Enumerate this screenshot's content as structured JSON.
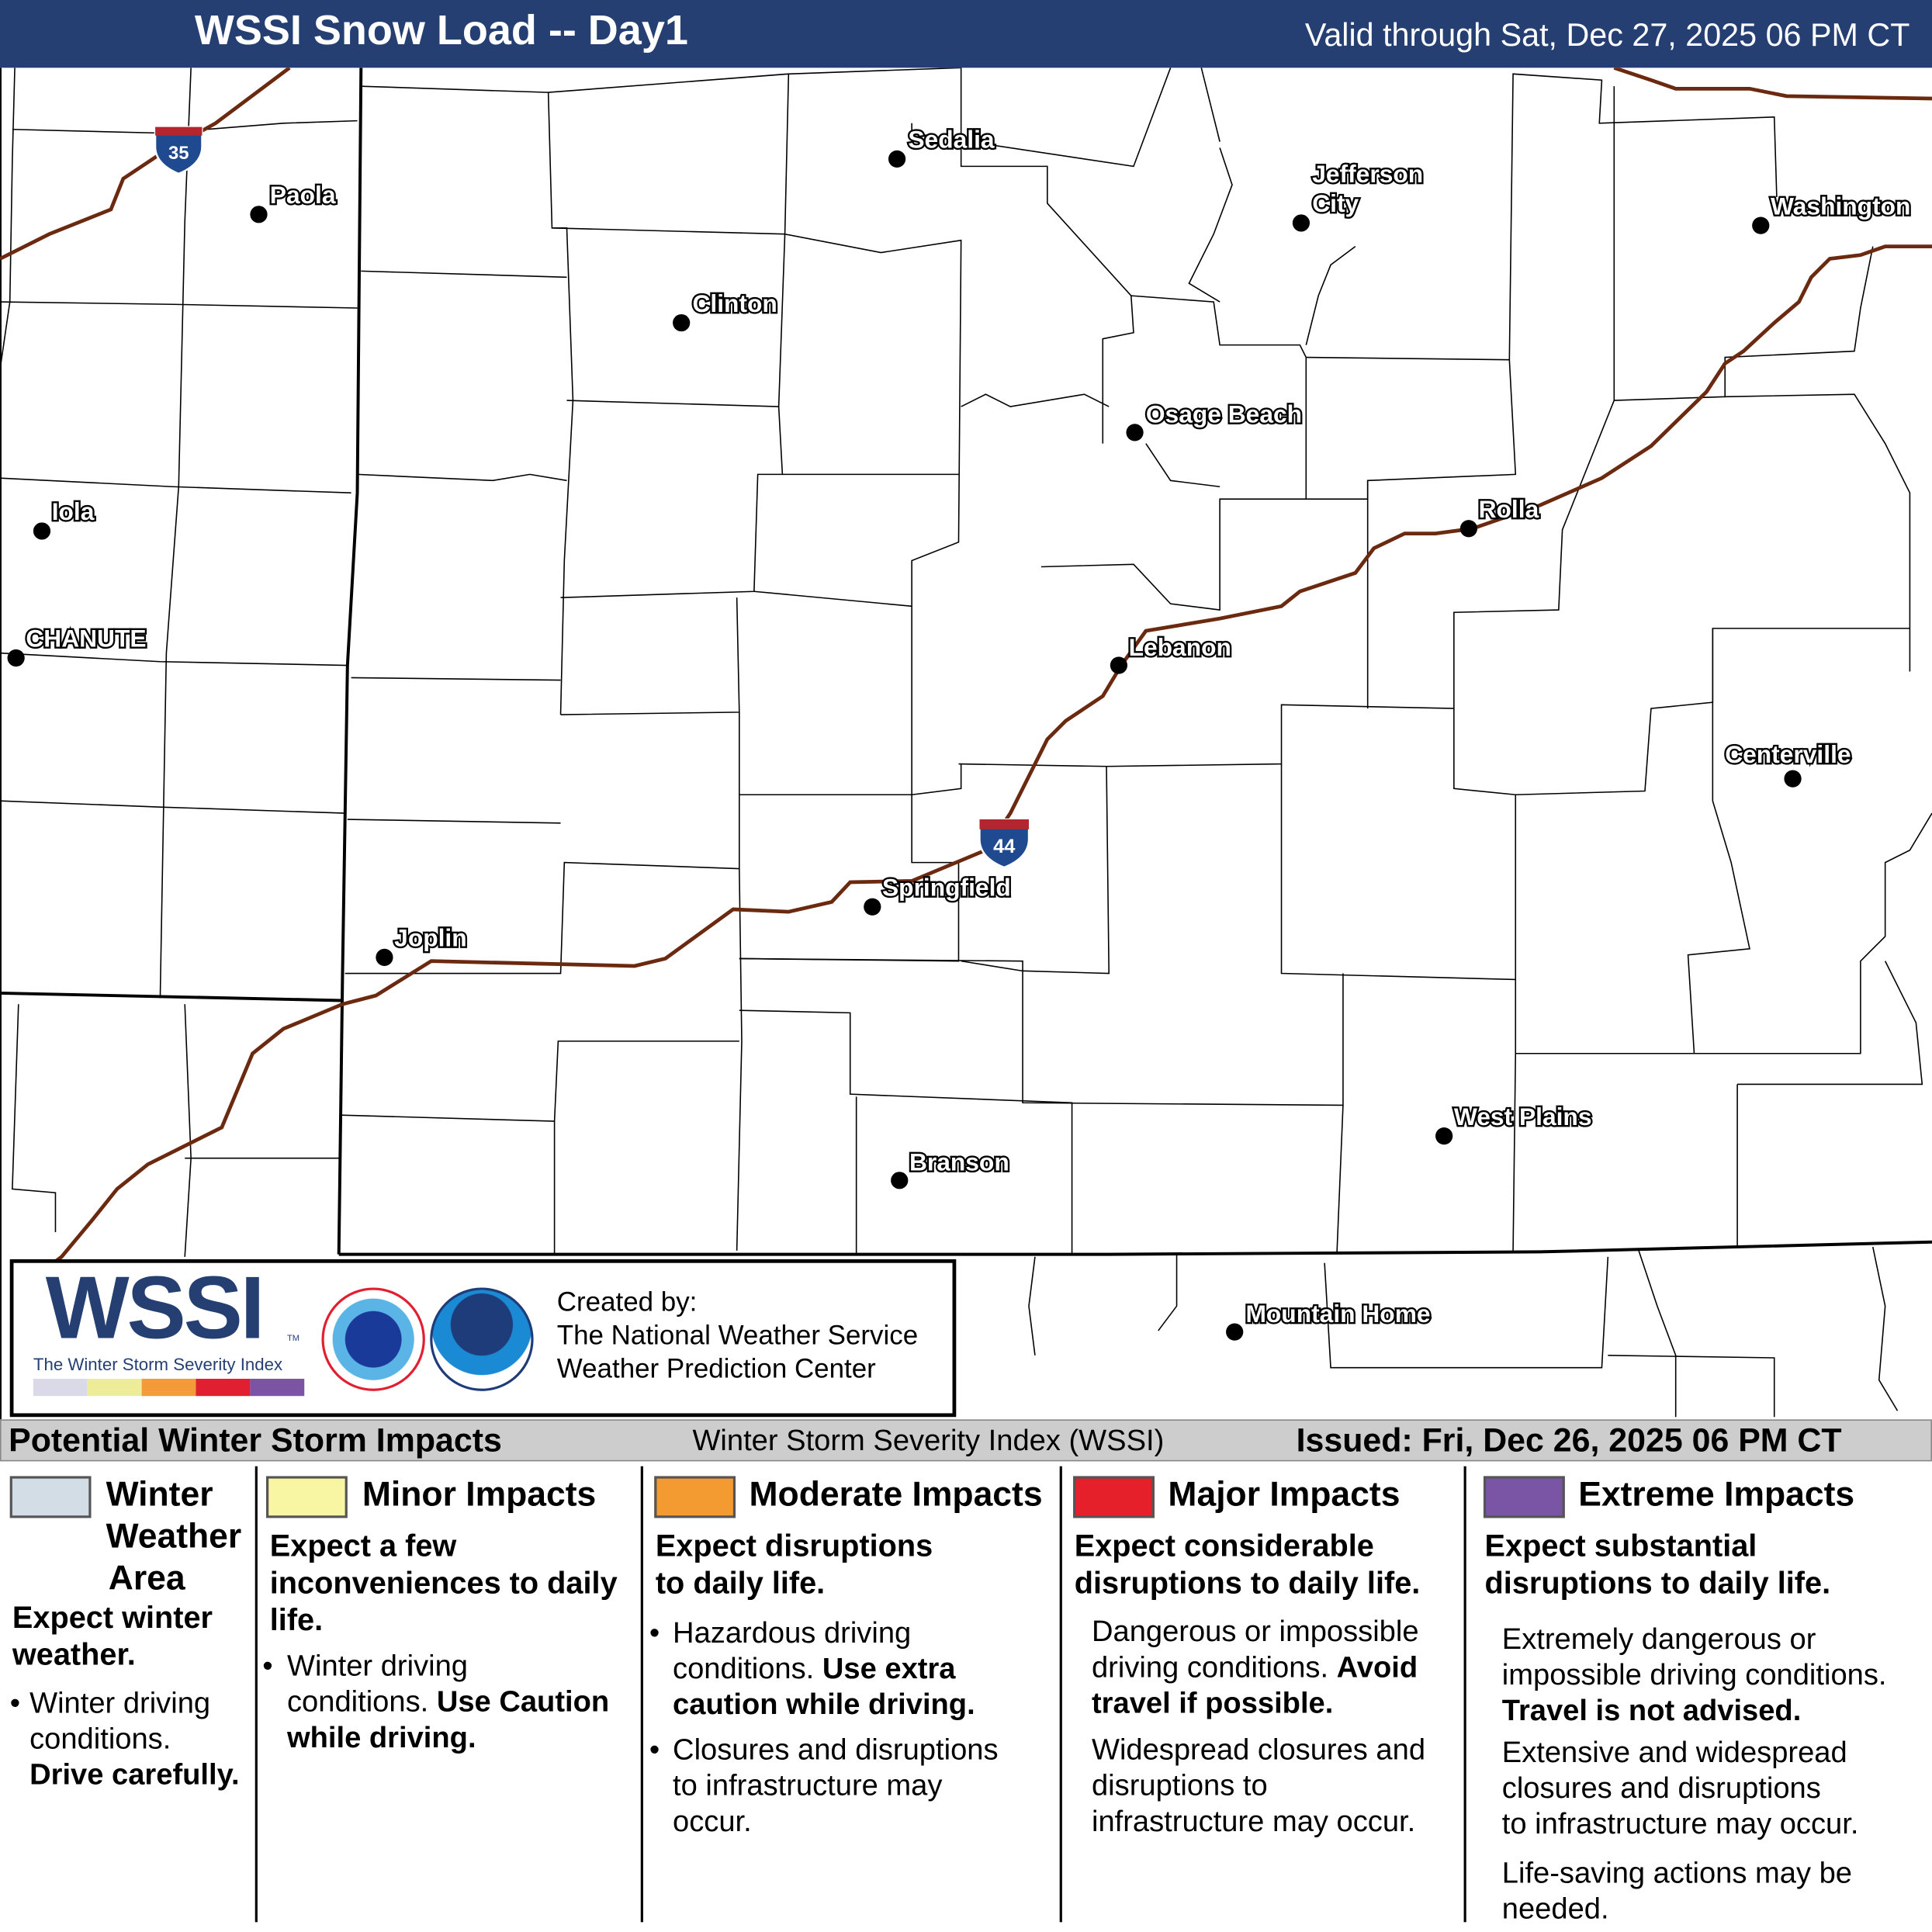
{
  "header": {
    "title": "WSSI Snow Load -- Day1",
    "valid": "Valid through Sat, Dec 27, 2025 06 PM CT"
  },
  "map": {
    "interstates": [
      {
        "number": "35"
      },
      {
        "number": "44"
      }
    ],
    "cities": [
      {
        "name": "Sedalia"
      },
      {
        "name": "Paola"
      },
      {
        "name": "Jefferson"
      },
      {
        "name": "City"
      },
      {
        "name": "Washington"
      },
      {
        "name": "Clinton"
      },
      {
        "name": "Osage Beach"
      },
      {
        "name": "Iola"
      },
      {
        "name": "Rolla"
      },
      {
        "name": "CHANUTE"
      },
      {
        "name": "Lebanon"
      },
      {
        "name": "Centerville"
      },
      {
        "name": "Springfield"
      },
      {
        "name": "Joplin"
      },
      {
        "name": "West Plains"
      },
      {
        "name": "Branson"
      },
      {
        "name": "Mountain Home"
      }
    ],
    "colors": {
      "interstate_route": "#6b2a10",
      "state_border": "#000000",
      "county_border": "#000000"
    }
  },
  "credit": {
    "logo_text": "WSSI",
    "logo_tagline": "The Winter Storm Severity Index",
    "tm": "TM",
    "created_by": "Created by:",
    "org1": "The National Weather Service",
    "org2": "Weather Prediction Center",
    "scale_colors": [
      "#d9d9e8",
      "#eded99",
      "#f59a38",
      "#e02030",
      "#7b54a3"
    ]
  },
  "legend": {
    "left": "Potential Winter Storm Impacts",
    "middle": "Winter Storm Severity Index (WSSI)",
    "right": "Issued: Fri, Dec 26, 2025 06 PM CT",
    "categories": [
      {
        "color": "#d3dde6",
        "title1": "Winter",
        "title2": "Weather",
        "title3": "Area",
        "summary1": "Expect winter",
        "summary2": "weather.",
        "b1": "Winter driving",
        "b2": "conditions.",
        "b3": "Drive carefully."
      },
      {
        "color": "#f8f5a3",
        "title": "Minor Impacts",
        "summary1": "Expect a few",
        "summary2": "inconveniences to daily",
        "summary3": "life.",
        "b1": "Winter driving",
        "b2": "conditions.",
        "b2b": "Use Caution",
        "b3": "while driving."
      },
      {
        "color": "#f39a31",
        "title": "Moderate Impacts",
        "summary1": "Expect disruptions",
        "summary2": "to daily life.",
        "b1": "Hazardous driving",
        "b2": "conditions.",
        "b2b": "Use extra",
        "b3": "caution while driving.",
        "c1": "Closures and disruptions",
        "c2": "to infrastructure may",
        "c3": "occur."
      },
      {
        "color": "#e5202a",
        "title": "Major Impacts",
        "summary1": "Expect considerable",
        "summary2": "disruptions to daily life.",
        "b1": "Dangerous or impossible",
        "b2": "driving conditions.",
        "b2b": "Avoid",
        "b3": "travel if possible.",
        "c1": "Widespread closures and",
        "c2": "disruptions to",
        "c3": "infrastructure may occur."
      },
      {
        "color": "#7a55a5",
        "title": "Extreme Impacts",
        "summary1": "Expect substantial",
        "summary2": "disruptions to daily life.",
        "b1": "Extremely dangerous or",
        "b2": "impossible driving conditions.",
        "b3": "Travel is not advised.",
        "c1": "Extensive and widespread",
        "c2": "closures and disruptions",
        "c3": "to infrastructure may occur.",
        "d1": "Life-saving actions may be",
        "d2": "needed."
      }
    ]
  }
}
